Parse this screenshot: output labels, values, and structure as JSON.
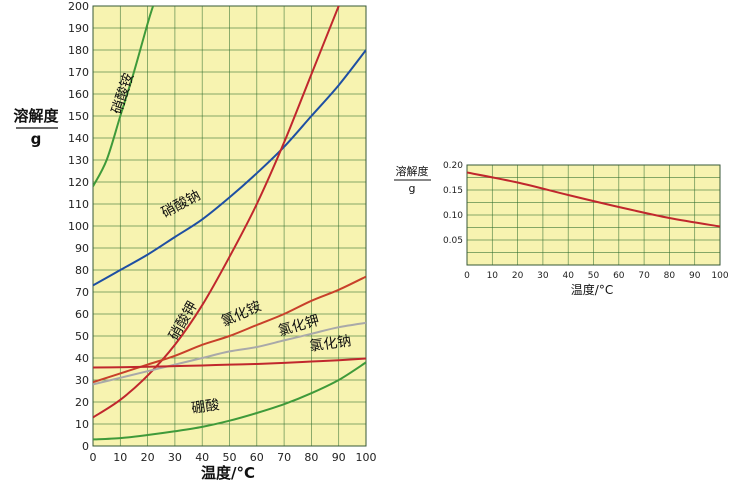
{
  "chart_data": [
    {
      "type": "line",
      "ylabel": "溶解度",
      "yunit": "g",
      "xlabel": "温度/°C",
      "xlim": [
        0,
        100
      ],
      "ylim": [
        0,
        200
      ],
      "x_ticks": [
        0,
        10,
        20,
        30,
        40,
        50,
        60,
        70,
        80,
        90,
        100
      ],
      "y_ticks": [
        0,
        10,
        20,
        30,
        40,
        50,
        60,
        70,
        80,
        90,
        100,
        110,
        120,
        130,
        140,
        150,
        160,
        170,
        180,
        190,
        200
      ],
      "grid": true,
      "background": "#f7f3b0",
      "series": [
        {
          "name": "硝酸铵",
          "color": "#3f9a3a",
          "x": [
            0,
            5,
            10,
            15,
            20,
            22
          ],
          "y": [
            118,
            130,
            150,
            170,
            192,
            200
          ]
        },
        {
          "name": "硝酸钠",
          "color": "#1e4fa3",
          "x": [
            0,
            10,
            20,
            30,
            40,
            50,
            60,
            70,
            80,
            90,
            100
          ],
          "y": [
            73,
            80,
            87,
            95,
            103,
            113,
            124,
            136,
            150,
            164,
            180
          ]
        },
        {
          "name": "硝酸钾",
          "color": "#c0272d",
          "x": [
            0,
            10,
            20,
            30,
            40,
            50,
            60,
            70,
            80,
            90,
            91
          ],
          "y": [
            13,
            21,
            32,
            46,
            64,
            86,
            110,
            138,
            169,
            200,
            203
          ]
        },
        {
          "name": "氯化铵",
          "color": "#c8402a",
          "x": [
            0,
            10,
            20,
            30,
            40,
            50,
            60,
            70,
            80,
            90,
            100
          ],
          "y": [
            29,
            33,
            37,
            41,
            46,
            50,
            55,
            60,
            66,
            71,
            77
          ]
        },
        {
          "name": "氯化钾",
          "color": "#a9a9a9",
          "x": [
            0,
            10,
            20,
            30,
            40,
            50,
            60,
            70,
            80,
            90,
            100
          ],
          "y": [
            28,
            31,
            34,
            37,
            40,
            43,
            45,
            48,
            51,
            54,
            56
          ]
        },
        {
          "name": "氯化钠",
          "color": "#c0272d",
          "x": [
            0,
            10,
            20,
            30,
            40,
            50,
            60,
            70,
            80,
            90,
            100
          ],
          "y": [
            35.7,
            35.8,
            36,
            36.3,
            36.6,
            37,
            37.3,
            37.8,
            38.4,
            39,
            39.8
          ]
        },
        {
          "name": "硼酸",
          "color": "#3f9a3a",
          "x": [
            0,
            10,
            20,
            30,
            40,
            50,
            60,
            70,
            80,
            90,
            100
          ],
          "y": [
            3,
            3.6,
            5,
            6.7,
            8.7,
            11.5,
            15,
            19,
            24,
            30,
            38
          ]
        }
      ]
    },
    {
      "type": "line",
      "ylabel": "溶解度",
      "yunit": "g",
      "xlabel": "温度/°C",
      "xlim": [
        0,
        100
      ],
      "ylim": [
        0,
        0.2
      ],
      "x_ticks": [
        0,
        10,
        20,
        30,
        40,
        50,
        60,
        70,
        80,
        90,
        100
      ],
      "y_ticks": [
        "0.05",
        "0.10",
        "0.15",
        "0.20"
      ],
      "grid": true,
      "background": "#f7f3b0",
      "series": [
        {
          "color": "#c0272d",
          "x": [
            0,
            20,
            40,
            60,
            80,
            100
          ],
          "y": [
            0.185,
            0.165,
            0.14,
            0.116,
            0.094,
            0.077
          ]
        }
      ]
    }
  ]
}
